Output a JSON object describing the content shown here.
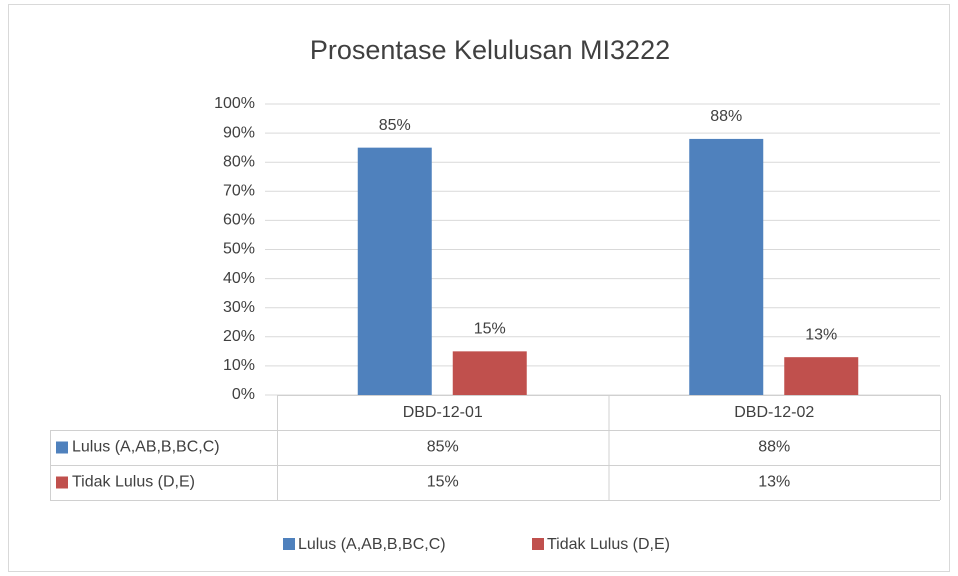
{
  "chart_data": {
    "type": "bar",
    "title": "Prosentase Kelulusan MI3222",
    "categories": [
      "DBD-12-01",
      "DBD-12-02"
    ],
    "series": [
      {
        "name": "Lulus (A,AB,B,BC,C)",
        "color": "#4f81bd",
        "values": [
          85,
          88
        ],
        "value_labels": [
          "85%",
          "88%"
        ]
      },
      {
        "name": "Tidak Lulus (D,E)",
        "color": "#c0504d",
        "values": [
          15,
          13
        ],
        "value_labels": [
          "15%",
          "13%"
        ]
      }
    ],
    "ylim": [
      0,
      100
    ],
    "yticks": [
      {
        "value": 0,
        "label": "0%"
      },
      {
        "value": 10,
        "label": "10%"
      },
      {
        "value": 20,
        "label": "20%"
      },
      {
        "value": 30,
        "label": "30%"
      },
      {
        "value": 40,
        "label": "40%"
      },
      {
        "value": 50,
        "label": "50%"
      },
      {
        "value": 60,
        "label": "60%"
      },
      {
        "value": 70,
        "label": "70%"
      },
      {
        "value": 80,
        "label": "80%"
      },
      {
        "value": 90,
        "label": "90%"
      },
      {
        "value": 100,
        "label": "100%"
      }
    ],
    "grid": true,
    "legend": "bottom",
    "data_table": true
  }
}
